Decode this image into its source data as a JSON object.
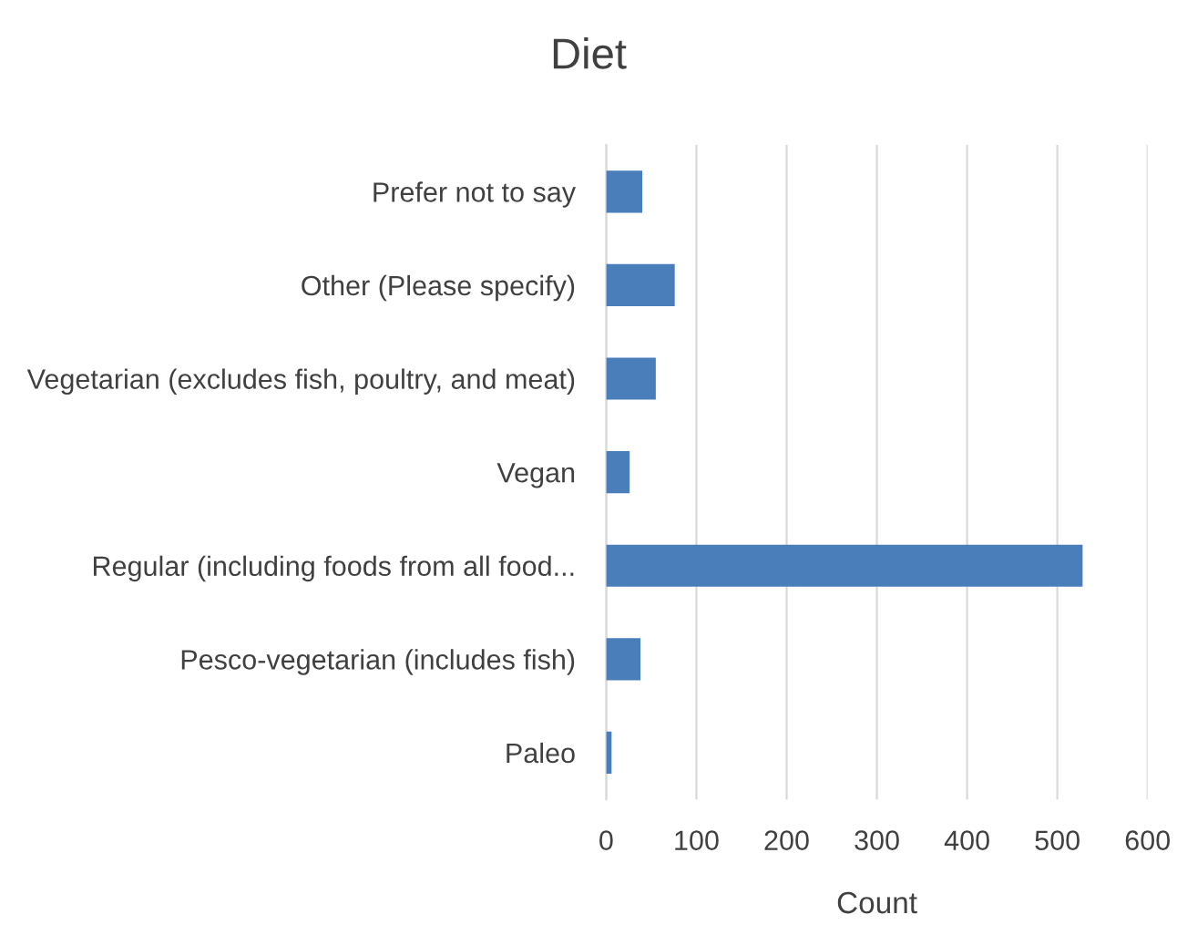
{
  "chart_data": {
    "type": "bar",
    "orientation": "horizontal",
    "title": "Diet",
    "xlabel": "Count",
    "categories": [
      "Prefer not to say",
      "Other (Please specify)",
      "Vegetarian (excludes fish, poultry, and meat)",
      "Vegan",
      "Regular (including foods from all food...",
      "Pesco-vegetarian (includes fish)",
      "Paleo"
    ],
    "values": [
      40,
      76,
      55,
      26,
      528,
      38,
      6
    ],
    "color": "#4a7ebb",
    "xlim": [
      0,
      600
    ],
    "xticks": [
      0,
      100,
      200,
      300,
      400,
      500,
      600
    ],
    "grid": "x",
    "legend": false
  }
}
